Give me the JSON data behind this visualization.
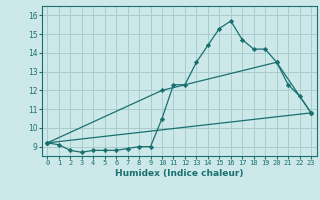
{
  "xlabel": "Humidex (Indice chaleur)",
  "bg_color": "#cce8e8",
  "grid_color": "#aacccc",
  "line_color": "#1a7070",
  "xlim": [
    -0.5,
    23.5
  ],
  "ylim": [
    8.5,
    16.5
  ],
  "xticks": [
    0,
    1,
    2,
    3,
    4,
    5,
    6,
    7,
    8,
    9,
    10,
    11,
    12,
    13,
    14,
    15,
    16,
    17,
    18,
    19,
    20,
    21,
    22,
    23
  ],
  "yticks": [
    9,
    10,
    11,
    12,
    13,
    14,
    15,
    16
  ],
  "series1_x": [
    0,
    1,
    2,
    3,
    4,
    5,
    6,
    7,
    8,
    9,
    10,
    11,
    12,
    13,
    14,
    15,
    16,
    17,
    18,
    19,
    20,
    21,
    22,
    23
  ],
  "series1_y": [
    9.2,
    9.1,
    8.8,
    8.7,
    8.8,
    8.8,
    8.8,
    8.9,
    9.0,
    9.0,
    10.5,
    12.3,
    12.3,
    13.5,
    14.4,
    15.3,
    15.7,
    14.7,
    14.2,
    14.2,
    13.5,
    12.3,
    11.7,
    10.8
  ],
  "series2_x": [
    0,
    10,
    20,
    23
  ],
  "series2_y": [
    9.2,
    12.0,
    13.5,
    10.8
  ],
  "series3_x": [
    0,
    23
  ],
  "series3_y": [
    9.2,
    10.8
  ]
}
